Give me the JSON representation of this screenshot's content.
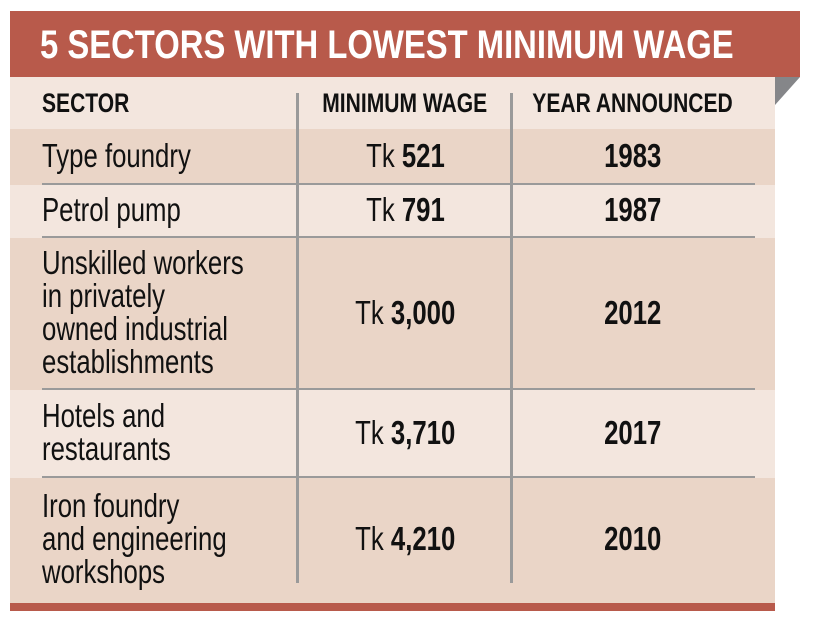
{
  "title": "5 SECTORS WITH LOWEST MINIMUM WAGE",
  "colors": {
    "banner": "#b85a4b",
    "row_light": "#f3e6de",
    "row_dark": "#ead5c7",
    "divider": "#9a9a9a",
    "fold": "#858689"
  },
  "chart_data": {
    "type": "table",
    "title": "5 SECTORS WITH LOWEST MINIMUM WAGE",
    "columns": [
      "SECTOR",
      "MINIMUM WAGE",
      "YEAR ANNOUNCED"
    ],
    "rows": [
      {
        "sector_lines": [
          "Type foundry"
        ],
        "currency": "Tk",
        "wage": "521",
        "year": "1983"
      },
      {
        "sector_lines": [
          "Petrol pump"
        ],
        "currency": "Tk",
        "wage": "791",
        "year": "1987"
      },
      {
        "sector_lines": [
          "Unskilled workers",
          "in privately",
          "owned industrial",
          "establishments"
        ],
        "currency": "Tk",
        "wage": "3,000",
        "year": "2012"
      },
      {
        "sector_lines": [
          "Hotels and",
          "restaurants"
        ],
        "currency": "Tk",
        "wage": "3,710",
        "year": "2017"
      },
      {
        "sector_lines": [
          "Iron foundry",
          "and engineering",
          "workshops"
        ],
        "currency": "Tk",
        "wage": "4,210",
        "year": "2010"
      }
    ]
  }
}
